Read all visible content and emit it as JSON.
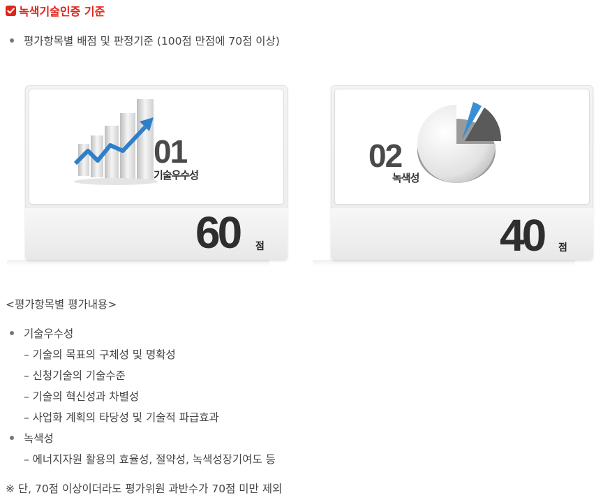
{
  "header": {
    "title": "녹색기술인증 기준"
  },
  "intro": {
    "bullet": "평가항목별 배점 및 판정기준 (100점 만점에 70점 이상)"
  },
  "cards": [
    {
      "number": "01",
      "category": "기술우수성",
      "score": "60",
      "unit": "점",
      "icon": "bar-chart-arrow-icon"
    },
    {
      "number": "02",
      "category": "녹색성",
      "score": "40",
      "unit": "점",
      "icon": "pie-chart-icon"
    }
  ],
  "details": {
    "heading": "<평가항목별 평가내용>",
    "groups": [
      {
        "label": "기술우수성",
        "items": [
          "– 기술의 목표의 구체성 및 명확성",
          "– 신청기술의 기술수준",
          "– 기술의 혁신성과 차별성",
          "– 사업화 계획의 타당성 및 기술적 파급효과"
        ]
      },
      {
        "label": "녹색성",
        "items": [
          "– 에너지자원 활용의 효율성, 절약성, 녹색성장기여도 등"
        ]
      }
    ],
    "note": "※ 단, 70점 이상이더라도 평가위원 과반수가 70점 미만 제외"
  },
  "colors": {
    "accent": "#e2231a",
    "arrow": "#3a8fd4",
    "text": "#444444"
  }
}
